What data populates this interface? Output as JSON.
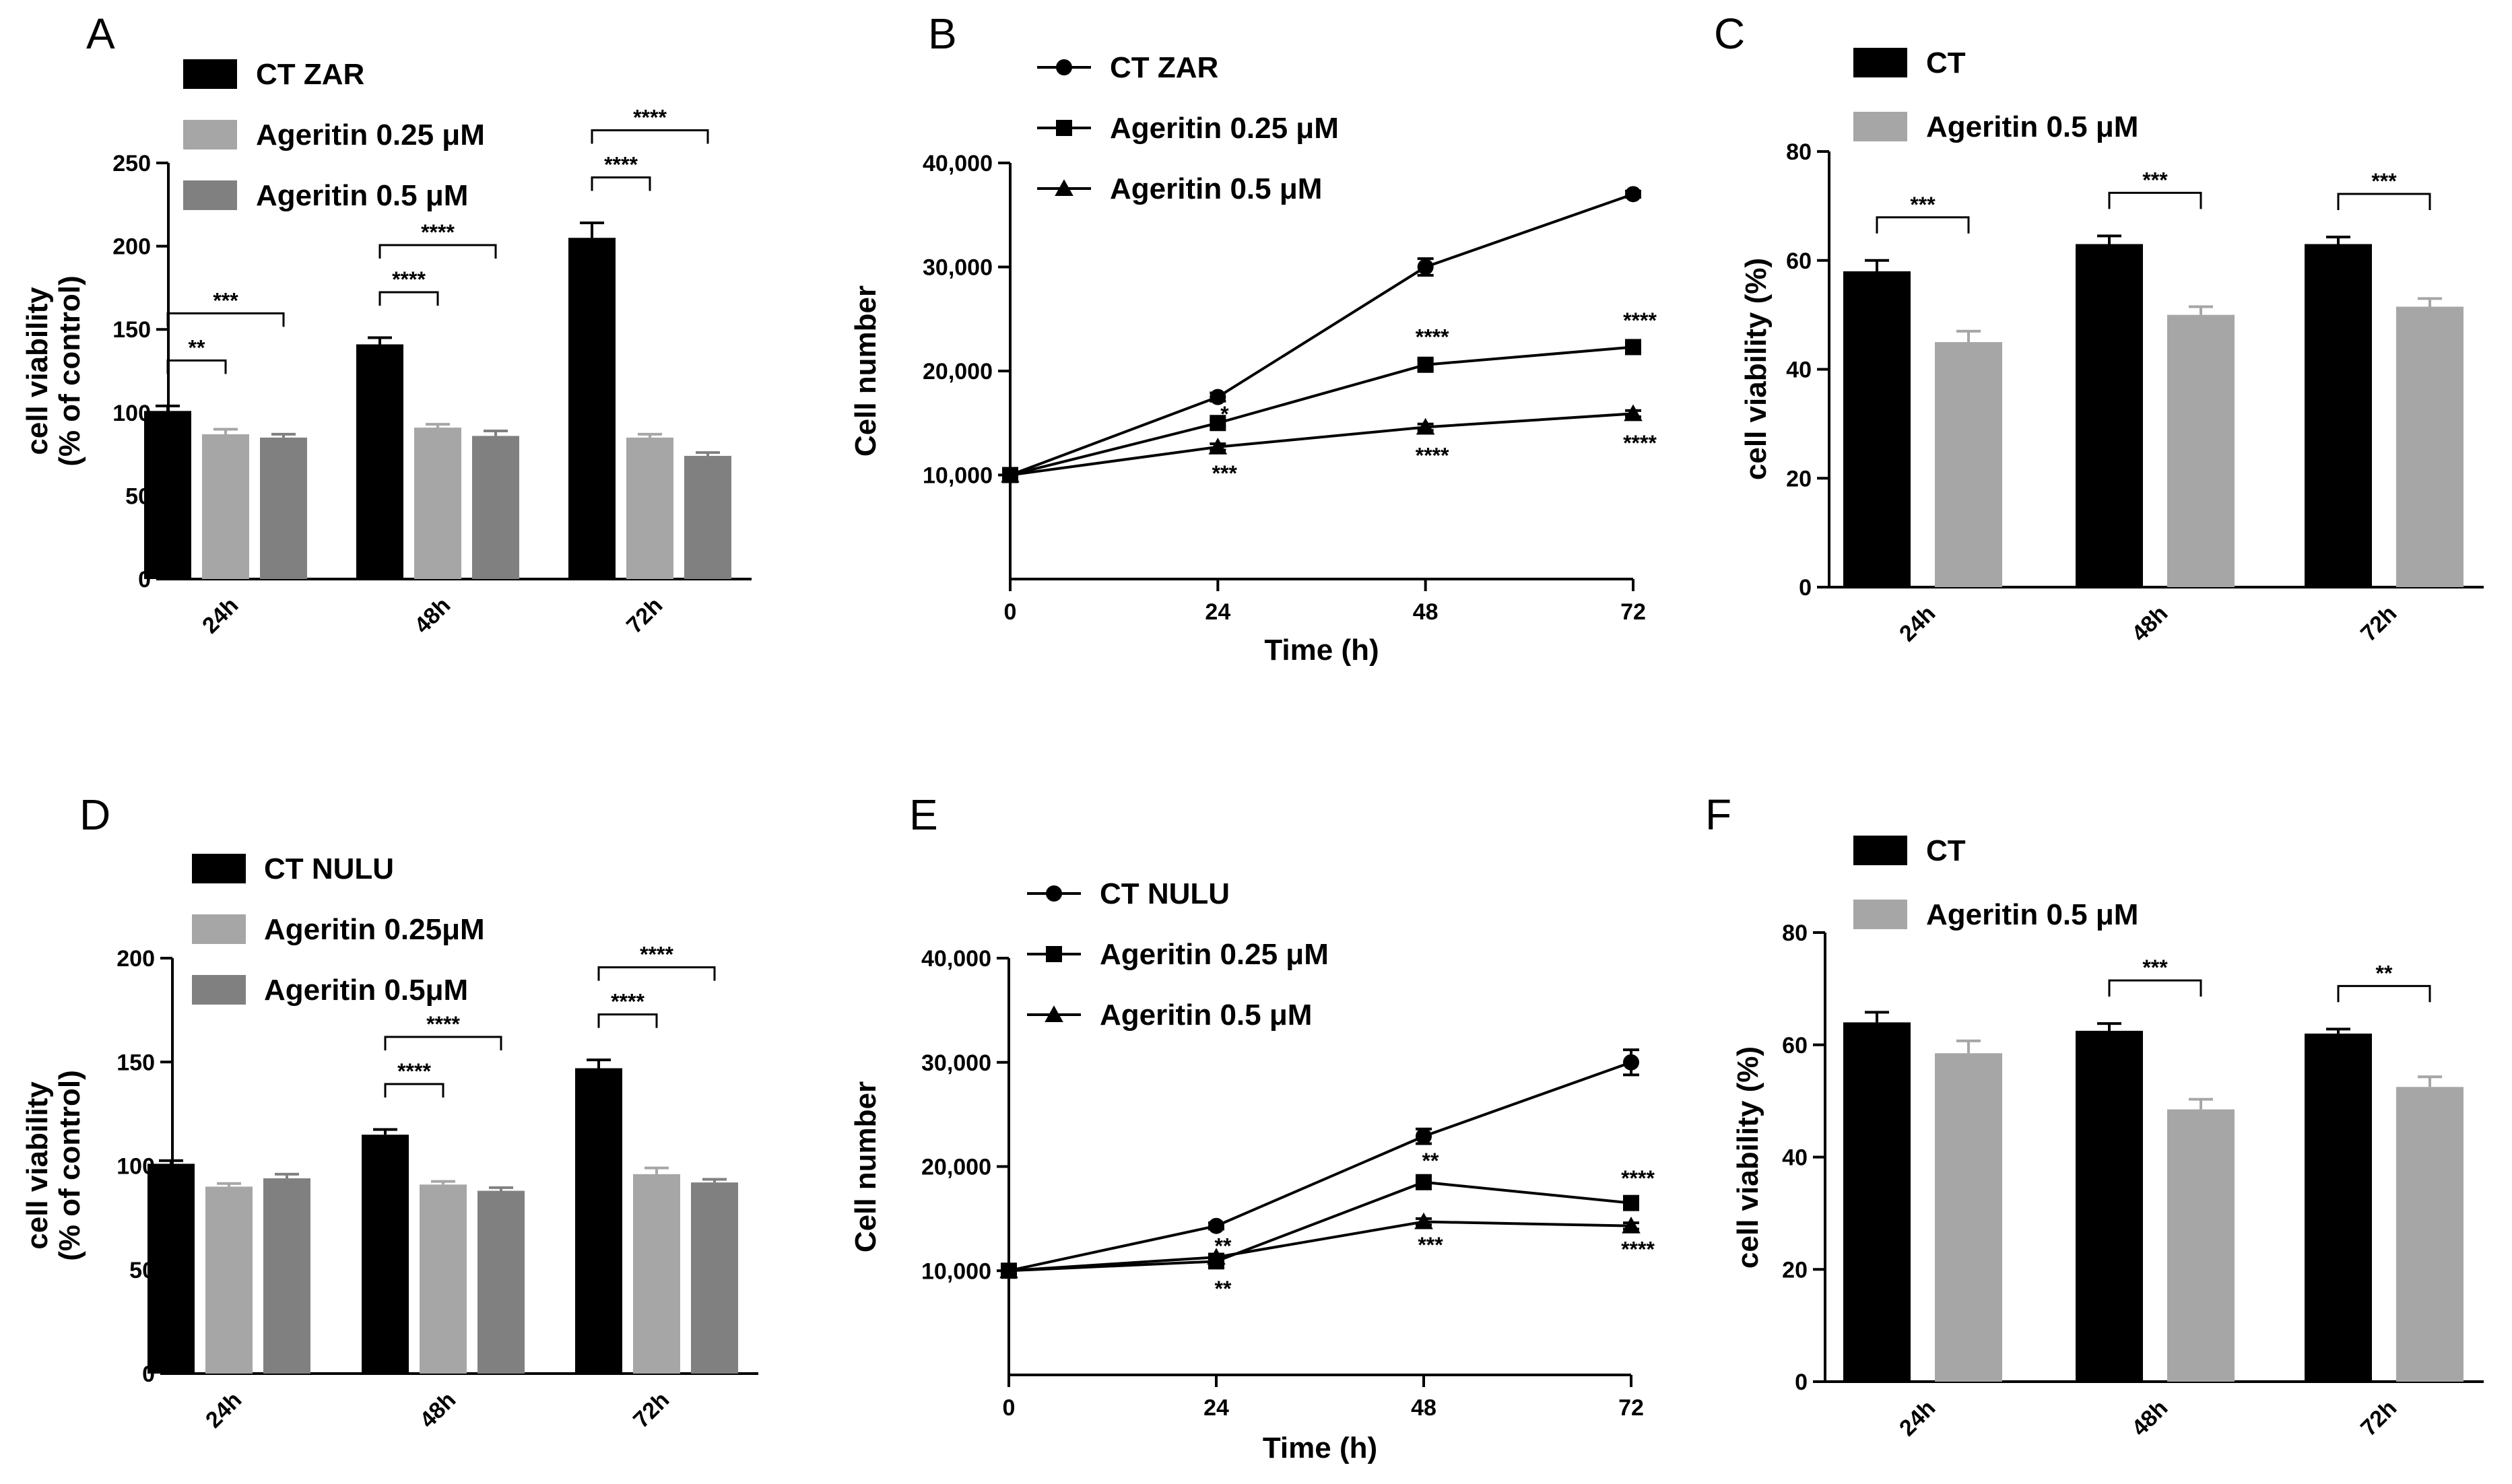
{
  "figure": {
    "colors": {
      "black": "#000000",
      "light_gray": "#A6A6A6",
      "dark_gray": "#808080"
    }
  },
  "chart_data": [
    {
      "panel": "A",
      "type": "bar",
      "ylabel_lines": [
        "cell viability",
        "(% of control)"
      ],
      "xlabel": "",
      "ylim": [
        0,
        250
      ],
      "yticks": [
        0,
        50,
        100,
        150,
        200,
        250
      ],
      "yticks_text": [
        "0",
        "50",
        "100",
        "150",
        "200",
        "250"
      ],
      "categories": [
        "24h",
        "48h",
        "72h"
      ],
      "series": [
        {
          "name": "CT ZAR",
          "color": "#000000",
          "values": [
            101,
            141,
            205
          ],
          "errors": [
            3,
            4,
            9
          ]
        },
        {
          "name": "Ageritin 0.25 μM",
          "color": "#A6A6A6",
          "values": [
            87,
            91,
            85
          ],
          "errors": [
            3,
            2,
            2
          ]
        },
        {
          "name": "Ageritin 0.5 μM",
          "color": "#808080",
          "values": [
            85,
            86,
            74
          ],
          "errors": [
            2,
            3,
            2
          ]
        }
      ],
      "brackets": [
        {
          "category": 0,
          "from": 0,
          "to": 1,
          "label": "**",
          "level": 1
        },
        {
          "category": 0,
          "from": 0,
          "to": 2,
          "label": "***",
          "level": 2
        },
        {
          "category": 1,
          "from": 0,
          "to": 1,
          "label": "****",
          "level": 1
        },
        {
          "category": 1,
          "from": 0,
          "to": 2,
          "label": "****",
          "level": 2
        },
        {
          "category": 2,
          "from": 0,
          "to": 1,
          "label": "****",
          "level": 1
        },
        {
          "category": 2,
          "from": 0,
          "to": 2,
          "label": "****",
          "level": 2
        }
      ]
    },
    {
      "panel": "B",
      "type": "line",
      "ylabel": "Cell number",
      "xlabel": "Time (h)",
      "xlim": [
        0,
        72
      ],
      "xticks": [
        0,
        24,
        48,
        72
      ],
      "xticks_text": [
        "0",
        "24",
        "48",
        "72"
      ],
      "ylim": [
        0,
        40000
      ],
      "yticks": [
        10000,
        20000,
        30000,
        40000
      ],
      "yticks_text": [
        "10,000",
        "20,000",
        "30,000",
        "40,000"
      ],
      "x": [
        0,
        24,
        48,
        72
      ],
      "series": [
        {
          "name": "CT ZAR",
          "marker": "circle",
          "values": [
            10000,
            17500,
            30000,
            37000
          ],
          "errors": [
            0,
            400,
            800,
            300
          ]
        },
        {
          "name": "Ageritin 0.25 μM",
          "marker": "square",
          "values": [
            10000,
            15000,
            20600,
            22300
          ],
          "errors": [
            0,
            300,
            500,
            300
          ]
        },
        {
          "name": "Ageritin 0.5 μM",
          "marker": "triangle",
          "values": [
            10000,
            12700,
            14600,
            15900
          ],
          "errors": [
            0,
            300,
            300,
            300
          ]
        }
      ],
      "annotations": [
        {
          "x": 24,
          "y": 15800,
          "text": "*"
        },
        {
          "x": 24,
          "y": 10100,
          "text": "***"
        },
        {
          "x": 48,
          "y": 23200,
          "text": "****"
        },
        {
          "x": 48,
          "y": 11800,
          "text": "****"
        },
        {
          "x": 72,
          "y": 24800,
          "text": "****"
        },
        {
          "x": 72,
          "y": 13000,
          "text": "****"
        }
      ]
    },
    {
      "panel": "C",
      "type": "bar",
      "ylabel": "cell viability (%)",
      "xlabel": "",
      "ylim": [
        0,
        80
      ],
      "yticks": [
        0,
        20,
        40,
        60,
        80
      ],
      "yticks_text": [
        "0",
        "20",
        "40",
        "60",
        "80"
      ],
      "categories": [
        "24h",
        "48h",
        "72h"
      ],
      "series": [
        {
          "name": "CT",
          "color": "#000000",
          "values": [
            58,
            63,
            63
          ],
          "errors": [
            2,
            1.5,
            1.3
          ]
        },
        {
          "name": "Ageritin 0.5 μM",
          "color": "#A6A6A6",
          "values": [
            45,
            50,
            51.5
          ],
          "errors": [
            2,
            1.5,
            1.5
          ]
        }
      ],
      "brackets": [
        {
          "category": 0,
          "from": 0,
          "to": 1,
          "label": "***",
          "level": 1
        },
        {
          "category": 1,
          "from": 0,
          "to": 1,
          "label": "***",
          "level": 1
        },
        {
          "category": 2,
          "from": 0,
          "to": 1,
          "label": "***",
          "level": 1
        }
      ]
    },
    {
      "panel": "D",
      "type": "bar",
      "ylabel_lines": [
        "cell viability",
        "(% of control)"
      ],
      "xlabel": "",
      "ylim": [
        0,
        200
      ],
      "yticks": [
        0,
        50,
        100,
        150,
        200
      ],
      "yticks_text": [
        "0",
        "50",
        "100",
        "150",
        "200"
      ],
      "categories": [
        "24h",
        "48h",
        "72h"
      ],
      "series": [
        {
          "name": "CT NULU",
          "color": "#000000",
          "values": [
            101,
            115,
            147
          ],
          "errors": [
            1.5,
            2.5,
            4
          ]
        },
        {
          "name": "Ageritin 0.25μM",
          "color": "#A6A6A6",
          "values": [
            90,
            91,
            96
          ],
          "errors": [
            1.5,
            1.5,
            3
          ]
        },
        {
          "name": "Ageritin 0.5μM",
          "color": "#808080",
          "values": [
            94,
            88,
            92
          ],
          "errors": [
            2,
            1.5,
            1.5
          ]
        }
      ],
      "brackets": [
        {
          "category": 1,
          "from": 0,
          "to": 1,
          "label": "****",
          "level": 1
        },
        {
          "category": 1,
          "from": 0,
          "to": 2,
          "label": "****",
          "level": 2
        },
        {
          "category": 2,
          "from": 0,
          "to": 1,
          "label": "****",
          "level": 1
        },
        {
          "category": 2,
          "from": 0,
          "to": 2,
          "label": "****",
          "level": 2
        }
      ]
    },
    {
      "panel": "E",
      "type": "line",
      "ylabel": "Cell number",
      "xlabel": "Time (h)",
      "xlim": [
        0,
        72
      ],
      "xticks": [
        0,
        24,
        48,
        72
      ],
      "xticks_text": [
        "0",
        "24",
        "48",
        "72"
      ],
      "ylim": [
        0,
        40000
      ],
      "yticks": [
        10000,
        20000,
        30000,
        40000
      ],
      "yticks_text": [
        "10,000",
        "20,000",
        "30,000",
        "40,000"
      ],
      "x": [
        0,
        24,
        48,
        72
      ],
      "series": [
        {
          "name": "CT NULU",
          "marker": "circle",
          "values": [
            10000,
            14300,
            22900,
            30000
          ],
          "errors": [
            0,
            300,
            700,
            1200
          ]
        },
        {
          "name": "Ageritin 0.25 μM",
          "marker": "square",
          "values": [
            10000,
            10900,
            18500,
            16500
          ],
          "errors": [
            0,
            300,
            300,
            300
          ]
        },
        {
          "name": "Ageritin 0.5 μM",
          "marker": "triangle",
          "values": [
            10000,
            11300,
            14700,
            14300
          ],
          "errors": [
            0,
            300,
            300,
            300
          ]
        }
      ],
      "annotations": [
        {
          "x": 24,
          "y": 12300,
          "text": "**"
        },
        {
          "x": 24,
          "y": 8200,
          "text": "**"
        },
        {
          "x": 48,
          "y": 20500,
          "text": "**"
        },
        {
          "x": 48,
          "y": 12400,
          "text": "***"
        },
        {
          "x": 72,
          "y": 18800,
          "text": "****"
        },
        {
          "x": 72,
          "y": 12000,
          "text": "****"
        }
      ]
    },
    {
      "panel": "F",
      "type": "bar",
      "ylabel": "cell viability (%)",
      "xlabel": "",
      "ylim": [
        0,
        80
      ],
      "yticks": [
        0,
        20,
        40,
        60,
        80
      ],
      "yticks_text": [
        "0",
        "20",
        "40",
        "60",
        "80"
      ],
      "categories": [
        "24h",
        "48h",
        "72h"
      ],
      "series": [
        {
          "name": "CT",
          "color": "#000000",
          "values": [
            64,
            62.5,
            62
          ],
          "errors": [
            1.8,
            1.3,
            0.8
          ]
        },
        {
          "name": "Ageritin 0.5 μM",
          "color": "#A6A6A6",
          "values": [
            58.5,
            48.5,
            52.5
          ],
          "errors": [
            2.2,
            1.8,
            1.8
          ]
        }
      ],
      "brackets": [
        {
          "category": 1,
          "from": 0,
          "to": 1,
          "label": "***",
          "level": 1
        },
        {
          "category": 2,
          "from": 0,
          "to": 1,
          "label": "**",
          "level": 1
        }
      ]
    }
  ]
}
